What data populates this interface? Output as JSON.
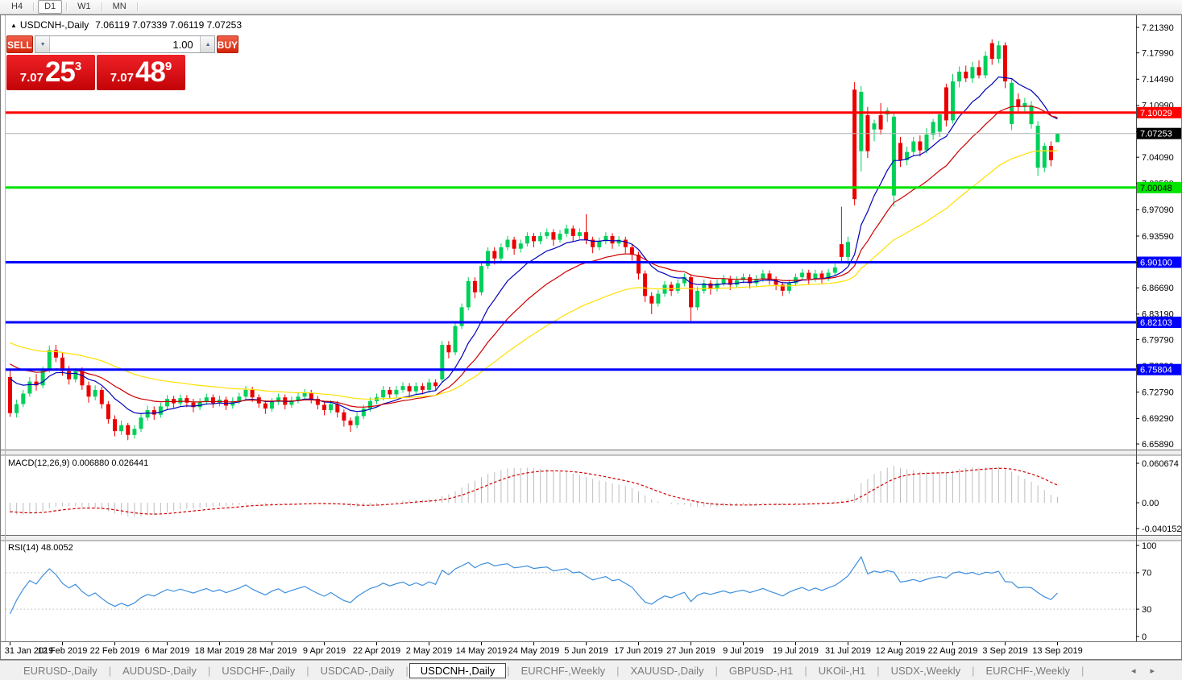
{
  "toolbar": {
    "timeframes": [
      "H4",
      "D1",
      "W1",
      "MN"
    ],
    "active_timeframe": "D1"
  },
  "icons": {
    "collapse_arrow": "▲",
    "spin_down": "▼",
    "spin_up": "▲",
    "tab_scroll_left": "◂",
    "tab_scroll_right": "▸"
  },
  "chart_header": {
    "symbol": "USDCNH-,Daily",
    "ohlc": "7.06119 7.07339 7.06119 7.07253"
  },
  "trade_panel": {
    "sell_label": "SELL",
    "buy_label": "BUY",
    "volume": "1.00",
    "sell_price": {
      "prefix": "7.07",
      "big": "25",
      "sup": "3"
    },
    "buy_price": {
      "prefix": "7.07",
      "big": "48",
      "sup": "9"
    }
  },
  "panels": {
    "macd": {
      "label": "MACD(12,26,9) 0.006880 0.026441",
      "axis": [
        "0.060674",
        "0.00",
        "-0.040152"
      ]
    },
    "rsi": {
      "label": "RSI(14) 48.0052",
      "axis": [
        "100",
        "70",
        "30",
        "0"
      ]
    }
  },
  "levels": {
    "resistance": {
      "price": 7.10029,
      "label": "7.10029",
      "color": "#FF0000",
      "text": "#ffffff"
    },
    "support": {
      "price": 7.00048,
      "label": "7.00048",
      "color": "#00E400",
      "text": "#000000"
    },
    "blue_lines": [
      {
        "price": 6.901,
        "label": "6.90100"
      },
      {
        "price": 6.82103,
        "label": "6.82103"
      },
      {
        "price": 6.75804,
        "label": "6.75804"
      }
    ],
    "blue_color": "#0000FF",
    "current": {
      "price": 7.07253,
      "label": "7.07253",
      "box": "#000000",
      "text": "#ffffff"
    }
  },
  "tabs": {
    "items": [
      "EURUSD-,Daily",
      "AUDUSD-,Daily",
      "USDCHF-,Daily",
      "USDCAD-,Daily",
      "USDCNH-,Daily",
      "EURCHF-,Weekly",
      "XAUUSD-,Daily",
      "GBPUSD-,H1",
      "UKOil-,H1",
      "USDX-,Weekly",
      "EURCHF-,Weekly"
    ],
    "active_index": 4
  },
  "colors": {
    "bull": "#00D05A",
    "bear": "#EB0000",
    "ma_fast": "#0000BB",
    "ma_mid": "#CC0000",
    "ma_slow": "#FFE000",
    "macd_hist": "#BDBDBD",
    "macd_signal": "#D40000",
    "rsi_line": "#3E8FDD",
    "bid_line": "#B4B4B4"
  },
  "chart_data": {
    "type": "candlestick",
    "title": "USDCNH-,Daily",
    "y_ticks": [
      "7.21390",
      "7.17990",
      "7.14490",
      "7.10990",
      "7.07490",
      "7.04090",
      "7.00590",
      "6.97090",
      "6.93590",
      "6.90090",
      "6.86690",
      "6.83190",
      "6.79790",
      "6.76290",
      "6.72790",
      "6.69290",
      "6.65890"
    ],
    "x_labels": [
      "31 Jan 2019",
      "12 Feb 2019",
      "22 Feb 2019",
      "6 Mar 2019",
      "18 Mar 2019",
      "28 Mar 2019",
      "9 Apr 2019",
      "22 Apr 2019",
      "2 May 2019",
      "14 May 2019",
      "24 May 2019",
      "5 Jun 2019",
      "17 Jun 2019",
      "27 Jun 2019",
      "9 Jul 2019",
      "19 Jul 2019",
      "31 Jul 2019",
      "12 Aug 2019",
      "22 Aug 2019",
      "3 Sep 2019",
      "13 Sep 2019"
    ],
    "bars_per_label": 8,
    "indicators": {
      "ma_periods": [
        10,
        21,
        45
      ],
      "macd": [
        12,
        26,
        9
      ],
      "rsi": 14
    },
    "candles": [
      [
        6.748,
        6.757,
        6.695,
        6.7
      ],
      [
        6.7,
        6.718,
        6.694,
        6.712
      ],
      [
        6.712,
        6.731,
        6.708,
        6.726
      ],
      [
        6.726,
        6.748,
        6.722,
        6.742
      ],
      [
        6.742,
        6.752,
        6.73,
        6.737
      ],
      [
        6.737,
        6.762,
        6.733,
        6.758
      ],
      [
        6.758,
        6.79,
        6.754,
        6.784
      ],
      [
        6.784,
        6.791,
        6.768,
        6.774
      ],
      [
        6.774,
        6.781,
        6.75,
        6.756
      ],
      [
        6.756,
        6.763,
        6.738,
        6.745
      ],
      [
        6.745,
        6.76,
        6.741,
        6.756
      ],
      [
        6.756,
        6.761,
        6.731,
        6.737
      ],
      [
        6.737,
        6.742,
        6.714,
        6.722
      ],
      [
        6.722,
        6.737,
        6.717,
        6.731
      ],
      [
        6.731,
        6.735,
        6.706,
        6.712
      ],
      [
        6.712,
        6.716,
        6.686,
        6.692
      ],
      [
        6.692,
        6.697,
        6.669,
        6.676
      ],
      [
        6.676,
        6.69,
        6.671,
        6.684
      ],
      [
        6.684,
        6.687,
        6.664,
        6.671
      ],
      [
        6.671,
        6.684,
        6.666,
        6.679
      ],
      [
        6.679,
        6.699,
        6.675,
        6.694
      ],
      [
        6.694,
        6.71,
        6.69,
        6.704
      ],
      [
        6.704,
        6.709,
        6.691,
        6.698
      ],
      [
        6.698,
        6.714,
        6.694,
        6.709
      ],
      [
        6.709,
        6.724,
        6.705,
        6.719
      ],
      [
        6.719,
        6.723,
        6.707,
        6.713
      ],
      [
        6.713,
        6.725,
        6.709,
        6.72
      ],
      [
        6.72,
        6.724,
        6.708,
        6.714
      ],
      [
        6.714,
        6.719,
        6.701,
        6.708
      ],
      [
        6.708,
        6.72,
        6.704,
        6.715
      ],
      [
        6.715,
        6.726,
        6.711,
        6.721
      ],
      [
        6.721,
        6.725,
        6.707,
        6.713
      ],
      [
        6.713,
        6.723,
        6.709,
        6.718
      ],
      [
        6.718,
        6.722,
        6.704,
        6.71
      ],
      [
        6.71,
        6.721,
        6.706,
        6.716
      ],
      [
        6.716,
        6.727,
        6.712,
        6.722
      ],
      [
        6.722,
        6.736,
        6.718,
        6.731
      ],
      [
        6.731,
        6.735,
        6.715,
        6.721
      ],
      [
        6.721,
        6.725,
        6.707,
        6.713
      ],
      [
        6.713,
        6.717,
        6.699,
        6.706
      ],
      [
        6.706,
        6.72,
        6.702,
        6.715
      ],
      [
        6.715,
        6.726,
        6.711,
        6.721
      ],
      [
        6.721,
        6.725,
        6.705,
        6.711
      ],
      [
        6.711,
        6.722,
        6.707,
        6.717
      ],
      [
        6.717,
        6.727,
        6.713,
        6.722
      ],
      [
        6.722,
        6.732,
        6.718,
        6.727
      ],
      [
        6.727,
        6.731,
        6.713,
        6.719
      ],
      [
        6.719,
        6.723,
        6.705,
        6.711
      ],
      [
        6.711,
        6.715,
        6.697,
        6.704
      ],
      [
        6.704,
        6.717,
        6.7,
        6.712
      ],
      [
        6.712,
        6.716,
        6.694,
        6.701
      ],
      [
        6.701,
        6.705,
        6.682,
        6.69
      ],
      [
        6.69,
        6.694,
        6.675,
        6.684
      ],
      [
        6.684,
        6.701,
        6.68,
        6.696
      ],
      [
        6.696,
        6.711,
        6.692,
        6.706
      ],
      [
        6.706,
        6.721,
        6.702,
        6.716
      ],
      [
        6.716,
        6.726,
        6.712,
        6.721
      ],
      [
        6.721,
        6.736,
        6.717,
        6.731
      ],
      [
        6.731,
        6.735,
        6.719,
        6.725
      ],
      [
        6.725,
        6.736,
        6.721,
        6.731
      ],
      [
        6.731,
        6.741,
        6.727,
        6.736
      ],
      [
        6.736,
        6.74,
        6.723,
        6.729
      ],
      [
        6.729,
        6.741,
        6.725,
        6.736
      ],
      [
        6.736,
        6.74,
        6.725,
        6.731
      ],
      [
        6.731,
        6.746,
        6.727,
        6.741
      ],
      [
        6.741,
        6.745,
        6.73,
        6.736
      ],
      [
        6.745,
        6.796,
        6.741,
        6.791
      ],
      [
        6.791,
        6.796,
        6.773,
        6.781
      ],
      [
        6.781,
        6.821,
        6.777,
        6.816
      ],
      [
        6.816,
        6.846,
        6.812,
        6.841
      ],
      [
        6.841,
        6.881,
        6.837,
        6.876
      ],
      [
        6.876,
        6.881,
        6.853,
        6.861
      ],
      [
        6.861,
        6.901,
        6.857,
        6.896
      ],
      [
        6.896,
        6.921,
        6.892,
        6.916
      ],
      [
        6.916,
        6.921,
        6.898,
        6.906
      ],
      [
        6.906,
        6.926,
        6.902,
        6.921
      ],
      [
        6.921,
        6.936,
        6.917,
        6.931
      ],
      [
        6.931,
        6.935,
        6.911,
        6.919
      ],
      [
        6.919,
        6.931,
        6.914,
        6.926
      ],
      [
        6.926,
        6.941,
        6.922,
        6.936
      ],
      [
        6.936,
        6.94,
        6.921,
        6.929
      ],
      [
        6.929,
        6.941,
        6.925,
        6.936
      ],
      [
        6.936,
        6.946,
        6.932,
        6.941
      ],
      [
        6.941,
        6.945,
        6.923,
        6.931
      ],
      [
        6.931,
        6.944,
        6.927,
        6.939
      ],
      [
        6.939,
        6.951,
        6.935,
        6.946
      ],
      [
        6.946,
        6.95,
        6.929,
        6.936
      ],
      [
        6.936,
        6.946,
        6.932,
        6.941
      ],
      [
        6.941,
        6.965,
        6.925,
        6.931
      ],
      [
        6.931,
        6.935,
        6.913,
        6.921
      ],
      [
        6.921,
        6.934,
        6.917,
        6.929
      ],
      [
        6.929,
        6.941,
        6.925,
        6.936
      ],
      [
        6.936,
        6.94,
        6.919,
        6.926
      ],
      [
        6.926,
        6.936,
        6.922,
        6.931
      ],
      [
        6.931,
        6.935,
        6.913,
        6.921
      ],
      [
        6.921,
        6.925,
        6.903,
        6.911
      ],
      [
        6.911,
        6.915,
        6.878,
        6.886
      ],
      [
        6.886,
        6.89,
        6.848,
        6.856
      ],
      [
        6.856,
        6.861,
        6.832,
        6.846
      ],
      [
        6.846,
        6.864,
        6.842,
        6.859
      ],
      [
        6.859,
        6.876,
        6.855,
        6.871
      ],
      [
        6.871,
        6.875,
        6.856,
        6.863
      ],
      [
        6.863,
        6.878,
        6.859,
        6.873
      ],
      [
        6.873,
        6.886,
        6.869,
        6.881
      ],
      [
        6.881,
        6.885,
        6.823,
        6.841
      ],
      [
        6.841,
        6.868,
        6.837,
        6.863
      ],
      [
        6.863,
        6.878,
        6.859,
        6.873
      ],
      [
        6.873,
        6.877,
        6.858,
        6.866
      ],
      [
        6.866,
        6.878,
        6.862,
        6.873
      ],
      [
        6.873,
        6.884,
        6.869,
        6.879
      ],
      [
        6.879,
        6.883,
        6.864,
        6.871
      ],
      [
        6.871,
        6.882,
        6.867,
        6.877
      ],
      [
        6.877,
        6.886,
        6.873,
        6.881
      ],
      [
        6.881,
        6.885,
        6.866,
        6.873
      ],
      [
        6.873,
        6.884,
        6.869,
        6.879
      ],
      [
        6.879,
        6.891,
        6.875,
        6.886
      ],
      [
        6.886,
        6.89,
        6.871,
        6.878
      ],
      [
        6.878,
        6.882,
        6.864,
        6.871
      ],
      [
        6.871,
        6.875,
        6.856,
        6.863
      ],
      [
        6.863,
        6.878,
        6.859,
        6.873
      ],
      [
        6.873,
        6.886,
        6.869,
        6.881
      ],
      [
        6.881,
        6.892,
        6.877,
        6.887
      ],
      [
        6.887,
        6.891,
        6.872,
        6.879
      ],
      [
        6.879,
        6.891,
        6.875,
        6.886
      ],
      [
        6.886,
        6.89,
        6.873,
        6.88
      ],
      [
        6.88,
        6.892,
        6.876,
        6.887
      ],
      [
        6.887,
        6.899,
        6.883,
        6.894
      ],
      [
        6.925,
        6.975,
        6.9,
        6.908
      ],
      [
        6.908,
        6.935,
        6.898,
        6.928
      ],
      [
        7.131,
        7.141,
        6.977,
        6.985
      ],
      [
        7.049,
        7.136,
        7.022,
        7.128
      ],
      [
        7.097,
        7.108,
        7.04,
        7.049
      ],
      [
        7.078,
        7.091,
        7.062,
        7.086
      ],
      [
        7.097,
        7.113,
        7.071,
        7.078
      ],
      [
        7.098,
        7.107,
        7.088,
        7.103
      ],
      [
        6.99,
        7.1,
        6.975,
        7.095
      ],
      [
        7.06,
        7.068,
        7.028,
        7.037
      ],
      [
        7.037,
        7.055,
        7.03,
        7.048
      ],
      [
        7.048,
        7.068,
        7.042,
        7.062
      ],
      [
        7.062,
        7.07,
        7.042,
        7.05
      ],
      [
        7.05,
        7.08,
        7.046,
        7.071
      ],
      [
        7.071,
        7.092,
        7.064,
        7.088
      ],
      [
        7.075,
        7.102,
        7.068,
        7.098
      ],
      [
        7.134,
        7.139,
        7.082,
        7.09
      ],
      [
        7.09,
        7.152,
        7.086,
        7.142
      ],
      [
        7.142,
        7.162,
        7.134,
        7.155
      ],
      [
        7.155,
        7.163,
        7.141,
        7.146
      ],
      [
        7.146,
        7.168,
        7.14,
        7.161
      ],
      [
        7.161,
        7.17,
        7.146,
        7.15
      ],
      [
        7.15,
        7.182,
        7.146,
        7.176
      ],
      [
        7.193,
        7.198,
        7.164,
        7.172
      ],
      [
        7.172,
        7.196,
        7.166,
        7.19
      ],
      [
        7.19,
        7.194,
        7.133,
        7.142
      ],
      [
        7.085,
        7.146,
        7.077,
        7.14
      ],
      [
        7.118,
        7.126,
        7.102,
        7.108
      ],
      [
        7.108,
        7.12,
        7.1,
        7.113
      ],
      [
        7.085,
        7.116,
        7.079,
        7.11
      ],
      [
        7.027,
        7.089,
        7.016,
        7.083
      ],
      [
        7.027,
        7.06,
        7.021,
        7.056
      ],
      [
        7.056,
        7.062,
        7.029,
        7.037
      ],
      [
        7.061,
        7.073,
        7.061,
        7.0725
      ]
    ]
  }
}
